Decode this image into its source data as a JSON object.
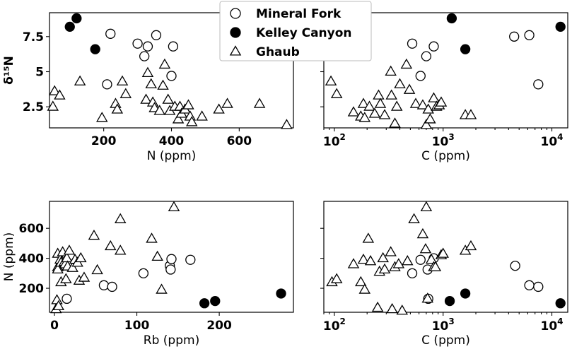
{
  "legend": {
    "placement": "top-center",
    "entries": [
      {
        "label": "Mineral Fork",
        "marker": "circle",
        "fill": "#ffffff"
      },
      {
        "label": "Kelley Canyon",
        "marker": "circle",
        "fill": "#000000"
      },
      {
        "label": "Ghaub",
        "marker": "triangle",
        "fill": "#ffffff"
      }
    ]
  },
  "chart_data": [
    {
      "type": "scatter",
      "panel": "top-left",
      "xlabel": "N  (ppm)",
      "ylabel": "δ¹⁵N",
      "xscale": "linear",
      "xlim": [
        40,
        760
      ],
      "ylim": [
        1.0,
        9.2
      ],
      "xticks": [
        200,
        400,
        600
      ],
      "yticks": [
        2.5,
        5.0,
        7.5
      ],
      "series": [
        {
          "name": "Mineral Fork",
          "points": [
            [
              210,
              4.1
            ],
            [
              220,
              7.7
            ],
            [
              300,
              7.0
            ],
            [
              320,
              6.1
            ],
            [
              330,
              6.8
            ],
            [
              355,
              7.6
            ],
            [
              400,
              4.7
            ],
            [
              405,
              6.8
            ]
          ]
        },
        {
          "name": "Kelley Canyon",
          "points": [
            [
              100,
              8.2
            ],
            [
              120,
              8.8
            ],
            [
              175,
              6.6
            ]
          ]
        },
        {
          "name": "Ghaub",
          "points": [
            [
              50,
              2.5
            ],
            [
              55,
              3.6
            ],
            [
              70,
              3.3
            ],
            [
              130,
              4.3
            ],
            [
              195,
              1.7
            ],
            [
              235,
              2.7
            ],
            [
              240,
              2.3
            ],
            [
              255,
              4.3
            ],
            [
              265,
              3.4
            ],
            [
              325,
              3.0
            ],
            [
              330,
              4.9
            ],
            [
              340,
              4.1
            ],
            [
              345,
              2.8
            ],
            [
              350,
              2.4
            ],
            [
              365,
              2.2
            ],
            [
              375,
              4.0
            ],
            [
              380,
              5.5
            ],
            [
              390,
              3.0
            ],
            [
              395,
              2.2
            ],
            [
              410,
              2.5
            ],
            [
              420,
              1.6
            ],
            [
              425,
              2.5
            ],
            [
              430,
              2.0
            ],
            [
              440,
              2.3
            ],
            [
              450,
              2.6
            ],
            [
              455,
              1.8
            ],
            [
              460,
              1.4
            ],
            [
              490,
              1.8
            ],
            [
              540,
              2.3
            ],
            [
              565,
              2.7
            ],
            [
              660,
              2.7
            ],
            [
              740,
              1.2
            ]
          ]
        }
      ]
    },
    {
      "type": "scatter",
      "panel": "top-right",
      "xlabel": "C (ppm)",
      "ylabel": "",
      "xscale": "log",
      "xlim": [
        80,
        14000
      ],
      "ylim": [
        1.0,
        9.2
      ],
      "xticks": [
        100,
        1000,
        10000
      ],
      "yticks": [
        2.5,
        5.0,
        7.5
      ],
      "series": [
        {
          "name": "Mineral Fork",
          "points": [
            [
              520,
              7.0
            ],
            [
              620,
              4.7
            ],
            [
              700,
              6.1
            ],
            [
              820,
              6.8
            ],
            [
              4500,
              7.5
            ],
            [
              6200,
              7.6
            ],
            [
              7500,
              4.1
            ]
          ]
        },
        {
          "name": "Kelley Canyon",
          "points": [
            [
              1200,
              8.8
            ],
            [
              1600,
              6.6
            ],
            [
              12000,
              8.2
            ]
          ]
        },
        {
          "name": "Ghaub",
          "points": [
            [
              93,
              4.3
            ],
            [
              105,
              3.4
            ],
            [
              150,
              2.1
            ],
            [
              175,
              1.8
            ],
            [
              185,
              2.7
            ],
            [
              190,
              1.7
            ],
            [
              210,
              2.5
            ],
            [
              235,
              2.0
            ],
            [
              255,
              3.3
            ],
            [
              265,
              2.7
            ],
            [
              290,
              1.9
            ],
            [
              330,
              5.0
            ],
            [
              335,
              3.3
            ],
            [
              360,
              1.3
            ],
            [
              375,
              2.5
            ],
            [
              400,
              4.1
            ],
            [
              460,
              5.5
            ],
            [
              490,
              3.7
            ],
            [
              560,
              2.7
            ],
            [
              650,
              2.6
            ],
            [
              700,
              1.2
            ],
            [
              730,
              2.3
            ],
            [
              760,
              1.6
            ],
            [
              820,
              3.1
            ],
            [
              870,
              2.5
            ],
            [
              920,
              2.6
            ],
            [
              960,
              2.8
            ],
            [
              1600,
              1.9
            ],
            [
              1800,
              1.9
            ]
          ]
        }
      ]
    },
    {
      "type": "scatter",
      "panel": "bottom-left",
      "xlabel": "Rb (ppm)",
      "ylabel": "N (ppm)",
      "xscale": "linear",
      "xlim": [
        -6,
        290
      ],
      "ylim": [
        40,
        780
      ],
      "xticks": [
        0,
        100,
        200
      ],
      "yticks": [
        200,
        400,
        600
      ],
      "series": [
        {
          "name": "Mineral Fork",
          "points": [
            [
              15,
              130
            ],
            [
              60,
              220
            ],
            [
              70,
              210
            ],
            [
              108,
              300
            ],
            [
              140,
              350
            ],
            [
              141,
              325
            ],
            [
              142,
              395
            ],
            [
              165,
              390
            ]
          ]
        },
        {
          "name": "Kelley Canyon",
          "points": [
            [
              182,
              100
            ],
            [
              195,
              115
            ],
            [
              275,
              165
            ]
          ]
        },
        {
          "name": "Ghaub",
          "points": [
            [
              2,
              60
            ],
            [
              3,
              120
            ],
            [
              4,
              430
            ],
            [
              4,
              340
            ],
            [
              4,
              325
            ],
            [
              5,
              80
            ],
            [
              7,
              390
            ],
            [
              8,
              240
            ],
            [
              8,
              370
            ],
            [
              10,
              440
            ],
            [
              12,
              375
            ],
            [
              13,
              360
            ],
            [
              14,
              260
            ],
            [
              15,
              400
            ],
            [
              16,
              345
            ],
            [
              18,
              450
            ],
            [
              22,
              335
            ],
            [
              25,
              390
            ],
            [
              28,
              370
            ],
            [
              30,
              250
            ],
            [
              32,
              400
            ],
            [
              36,
              270
            ],
            [
              48,
              550
            ],
            [
              52,
              320
            ],
            [
              68,
              480
            ],
            [
              80,
              660
            ],
            [
              80,
              450
            ],
            [
              118,
              530
            ],
            [
              125,
              410
            ],
            [
              130,
              190
            ],
            [
              145,
              740
            ]
          ]
        }
      ]
    },
    {
      "type": "scatter",
      "panel": "bottom-right",
      "xlabel": "C (ppm)",
      "ylabel": "",
      "xscale": "log",
      "xlim": [
        80,
        14000
      ],
      "ylim": [
        40,
        780
      ],
      "xticks": [
        100,
        1000,
        10000
      ],
      "yticks": [
        200,
        400,
        600
      ],
      "series": [
        {
          "name": "Mineral Fork",
          "points": [
            [
              520,
              300
            ],
            [
              620,
              390
            ],
            [
              720,
              325
            ],
            [
              730,
              130
            ],
            [
              820,
              400
            ],
            [
              4600,
              350
            ],
            [
              6200,
              220
            ],
            [
              7500,
              210
            ]
          ]
        },
        {
          "name": "Kelley Canyon",
          "points": [
            [
              1150,
              115
            ],
            [
              1600,
              165
            ],
            [
              12000,
              100
            ]
          ]
        },
        {
          "name": "Ghaub",
          "points": [
            [
              95,
              240
            ],
            [
              105,
              260
            ],
            [
              150,
              360
            ],
            [
              175,
              240
            ],
            [
              185,
              390
            ],
            [
              190,
              190
            ],
            [
              205,
              530
            ],
            [
              215,
              380
            ],
            [
              250,
              70
            ],
            [
              260,
              310
            ],
            [
              280,
              400
            ],
            [
              290,
              325
            ],
            [
              330,
              440
            ],
            [
              340,
              60
            ],
            [
              360,
              340
            ],
            [
              390,
              360
            ],
            [
              420,
              50
            ],
            [
              470,
              380
            ],
            [
              540,
              660
            ],
            [
              650,
              560
            ],
            [
              690,
              460
            ],
            [
              700,
              740
            ],
            [
              720,
              130
            ],
            [
              780,
              390
            ],
            [
              820,
              340
            ],
            [
              850,
              340
            ],
            [
              960,
              420
            ],
            [
              1000,
              430
            ],
            [
              1600,
              450
            ],
            [
              1800,
              480
            ]
          ]
        }
      ]
    }
  ]
}
